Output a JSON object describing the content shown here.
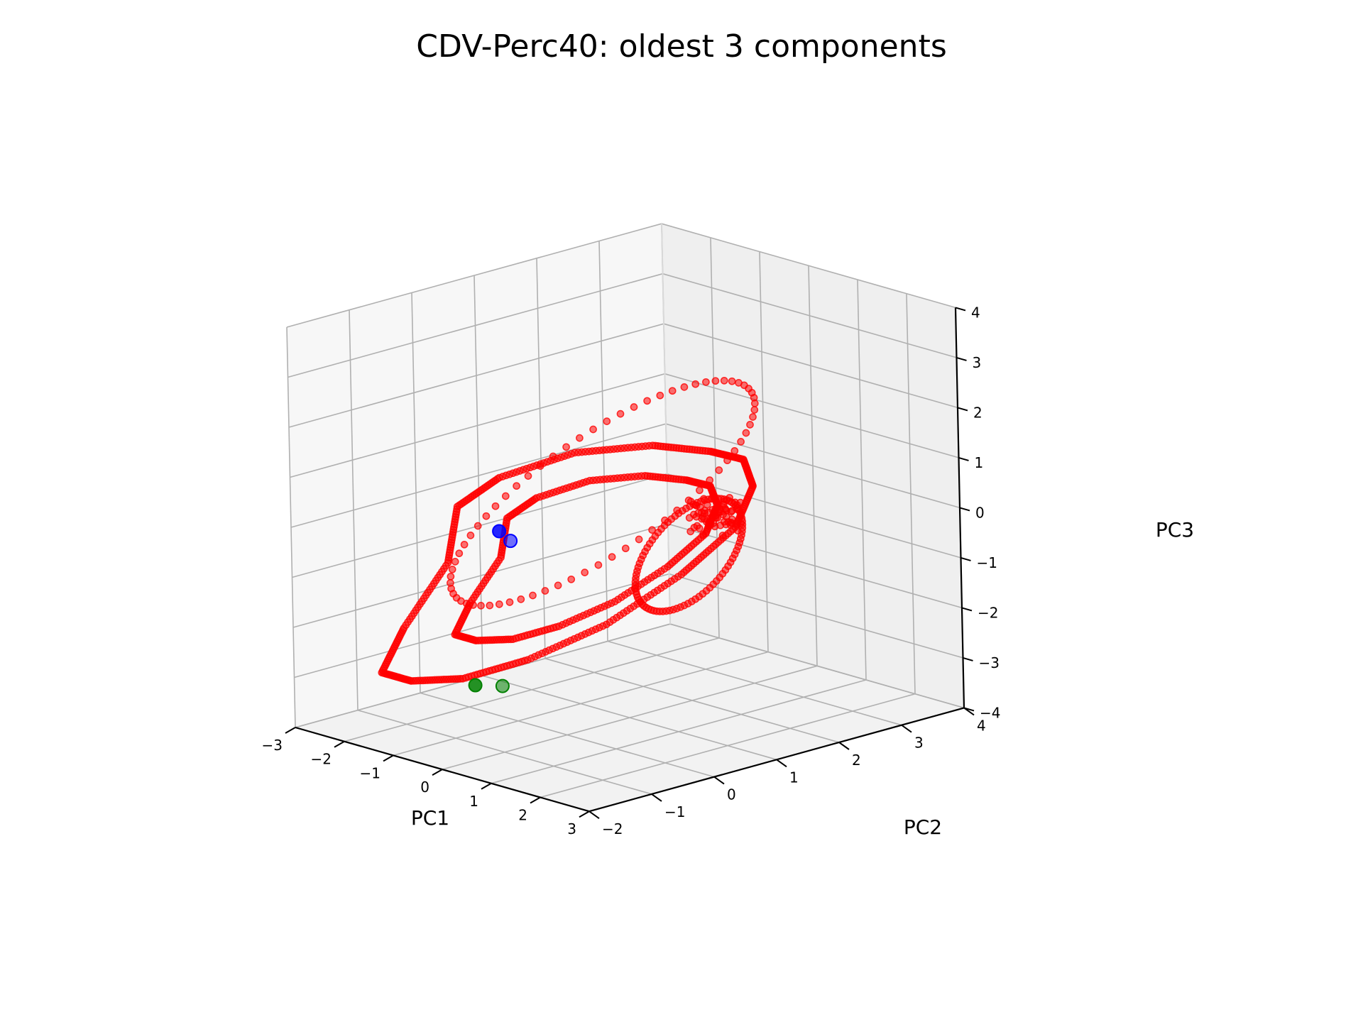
{
  "chart_data": {
    "type": "scatter",
    "projection": "3d",
    "title": "CDV-Perc40: oldest 3 components",
    "xlabel": "PC1",
    "ylabel": "PC2",
    "zlabel": "PC3",
    "xlim": [
      -3,
      3
    ],
    "ylim": [
      -2,
      4
    ],
    "zlim": [
      -4,
      4
    ],
    "x_ticks": [
      "−3",
      "−2",
      "−1",
      "0",
      "1",
      "2",
      "3"
    ],
    "y_ticks": [
      "−2",
      "−1",
      "0",
      "1",
      "2",
      "3",
      "4"
    ],
    "z_ticks": [
      "−4",
      "−3",
      "−2",
      "−1",
      "0",
      "1",
      "2",
      "3",
      "4"
    ],
    "grid": true,
    "colors": {
      "main": "#ff0000",
      "start": "#0000ff",
      "end": "#008000",
      "pane": "#f2f2f2",
      "grid": "#b0b0b0"
    },
    "series": [
      {
        "color": "#ff0000",
        "description": "trajectory points (PC1, PC2, PC3)"
      },
      {
        "color": "#0000ff",
        "points": [
          [
            -2.6,
            1.0,
            -1.0
          ],
          [
            -2.5,
            1.1,
            -1.2
          ]
        ]
      },
      {
        "color": "#008000",
        "points": [
          [
            0.2,
            -1.6,
            -2.4
          ],
          [
            0.5,
            -1.4,
            -2.4
          ]
        ]
      }
    ]
  }
}
